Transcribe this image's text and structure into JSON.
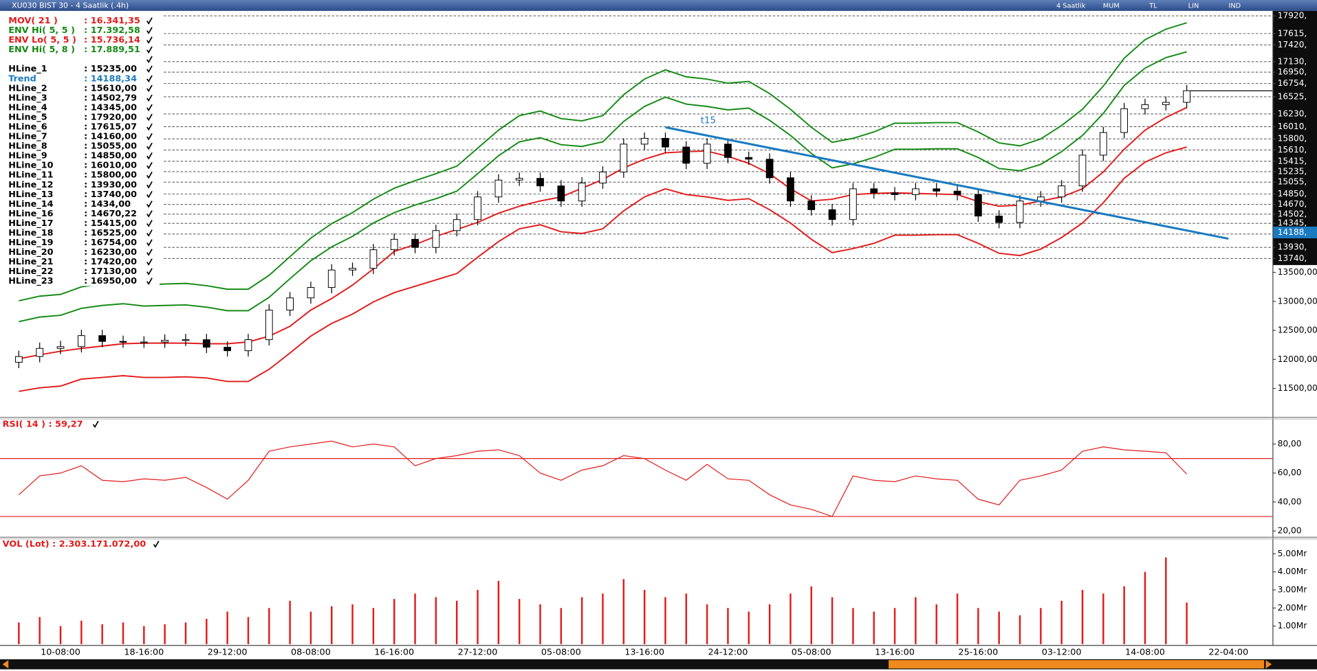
{
  "window_title": "XU030 BIST 30 - 4 Saatlik (.4h)",
  "toolbar": [
    "4 Saatlik",
    "MUM",
    "TL",
    "LIN",
    "IND"
  ],
  "chart_data": [
    {
      "type": "candlestick",
      "categories": [
        null,
        null,
        "10-08:00",
        null,
        null,
        null,
        "18-16:00",
        null,
        null,
        null,
        "29-12:00",
        null,
        null,
        null,
        "08-08:00",
        null,
        null,
        null,
        "16-16:00",
        null,
        null,
        null,
        "27-12:00",
        null,
        null,
        null,
        "05-08:00",
        null,
        null,
        null,
        "13-16:00",
        null,
        null,
        null,
        "24-12:00",
        null,
        null,
        null,
        "05-08:00",
        null,
        null,
        null,
        "13-16:00",
        null,
        null,
        null,
        "25-16:00",
        null,
        null,
        null,
        "03-12:00",
        null,
        null,
        null,
        "14-08:00",
        null,
        null,
        null,
        "22-04:00"
      ],
      "open": [
        11950,
        12050,
        12190,
        12220,
        12410,
        12310,
        12300,
        12300,
        12330,
        12340,
        12210,
        12150,
        12340,
        12850,
        13060,
        13240,
        13540,
        13570,
        13890,
        14070,
        13930,
        14220,
        14410,
        14800,
        15090,
        15120,
        14990,
        14730,
        15040,
        15230,
        15710,
        15810,
        15660,
        15380,
        15710,
        15480,
        15450,
        15130,
        14730,
        14580,
        14410,
        14940,
        14870,
        14840,
        14940,
        14900,
        14840,
        14470,
        14360,
        14730,
        14800,
        14990,
        15520,
        15910,
        16320,
        16390,
        16430,
        null,
        null
      ],
      "high": [
        12150,
        12290,
        12320,
        12510,
        12510,
        12410,
        12400,
        12430,
        12440,
        12440,
        12310,
        12440,
        12950,
        13160,
        13340,
        13640,
        13670,
        13990,
        14170,
        14170,
        14320,
        14510,
        14900,
        15190,
        15220,
        15220,
        15090,
        15140,
        15330,
        15810,
        15910,
        15910,
        15760,
        15810,
        15810,
        15580,
        15550,
        15230,
        14830,
        14680,
        15040,
        15040,
        14970,
        15040,
        15040,
        15000,
        14940,
        14570,
        14830,
        14900,
        15090,
        15620,
        16010,
        16420,
        16490,
        16530,
        16730,
        null,
        null
      ],
      "low": [
        11850,
        11950,
        12090,
        12120,
        12210,
        12200,
        12200,
        12200,
        12230,
        12110,
        12050,
        12050,
        12240,
        12750,
        12960,
        13140,
        13440,
        13470,
        13790,
        13830,
        13830,
        14120,
        14310,
        14700,
        14990,
        14890,
        14630,
        14630,
        14940,
        15130,
        15610,
        15560,
        15280,
        15280,
        15380,
        15350,
        15030,
        14630,
        14480,
        14310,
        14310,
        14770,
        14740,
        14740,
        14800,
        14740,
        14370,
        14260,
        14260,
        14630,
        14700,
        14890,
        15420,
        15810,
        16220,
        16290,
        16330,
        null,
        null
      ],
      "close": [
        12050,
        12190,
        12220,
        12410,
        12310,
        12300,
        12300,
        12330,
        12340,
        12210,
        12150,
        12340,
        12850,
        13060,
        13240,
        13540,
        13570,
        13890,
        14070,
        13930,
        14220,
        14410,
        14800,
        15090,
        15120,
        14990,
        14730,
        15040,
        15230,
        15710,
        15810,
        15660,
        15380,
        15710,
        15480,
        15450,
        15130,
        14730,
        14580,
        14410,
        14940,
        14870,
        14840,
        14940,
        14900,
        14840,
        14470,
        14360,
        14730,
        14800,
        14990,
        15520,
        15910,
        16320,
        16390,
        16430,
        16630,
        null,
        null
      ],
      "up_color": "#ffffff",
      "down_color": "#000000",
      "series": [
        {
          "name": "MOV( 21 )",
          "readout": ": 16.341,35",
          "color": "#e31a1a",
          "values": [
            12010,
            12080,
            12140,
            12190,
            12230,
            12270,
            12280,
            12280,
            12280,
            12270,
            12270,
            12300,
            12400,
            12570,
            12850,
            13050,
            13280,
            13560,
            13860,
            13980,
            14120,
            14240,
            14360,
            14520,
            14640,
            14730,
            14800,
            14950,
            15100,
            15300,
            15450,
            15560,
            15580,
            15590,
            15500,
            15380,
            15200,
            14940,
            14730,
            14760,
            14840,
            14860,
            14870,
            14860,
            14850,
            14840,
            14720,
            14640,
            14660,
            14730,
            14800,
            14940,
            15230,
            15620,
            15950,
            16170,
            16340,
            null,
            null
          ]
        },
        {
          "name": "ENV Hi( 5, 5 )",
          "readout": ": 17.392,58",
          "color": "#138a13",
          "values": [
            12650,
            12730,
            12760,
            12880,
            12930,
            12960,
            12920,
            12930,
            12940,
            12900,
            12840,
            12840,
            13070,
            13390,
            13700,
            13940,
            14120,
            14350,
            14530,
            14660,
            14770,
            14900,
            15200,
            15510,
            15750,
            15820,
            15700,
            15670,
            15750,
            16100,
            16360,
            16520,
            16400,
            16360,
            16300,
            16330,
            16120,
            15860,
            15550,
            15300,
            15370,
            15480,
            15620,
            15620,
            15630,
            15630,
            15480,
            15290,
            15250,
            15360,
            15580,
            15860,
            16240,
            16720,
            17020,
            17200,
            17300,
            null,
            null
          ]
        },
        {
          "name": "ENV Lo( 5, 5 )",
          "readout": ": 15.736,14",
          "color": "#e31a1a",
          "values": [
            11450,
            11510,
            11540,
            11660,
            11690,
            11720,
            11690,
            11690,
            11700,
            11680,
            11620,
            11620,
            11830,
            12110,
            12400,
            12620,
            12780,
            12990,
            13150,
            13260,
            13370,
            13480,
            13760,
            14030,
            14250,
            14320,
            14200,
            14170,
            14250,
            14560,
            14800,
            14940,
            14840,
            14800,
            14740,
            14770,
            14580,
            14350,
            14070,
            13840,
            13910,
            14000,
            14140,
            14140,
            14150,
            14150,
            14000,
            13830,
            13790,
            13900,
            14100,
            14350,
            14700,
            15120,
            15400,
            15560,
            15660,
            null,
            null
          ]
        },
        {
          "name": "ENV Hi( 5, 8 )",
          "readout": ": 17.889,51",
          "color": "#138a13",
          "values": [
            13010,
            13090,
            13120,
            13250,
            13300,
            13330,
            13280,
            13300,
            13310,
            13270,
            13210,
            13210,
            13450,
            13770,
            14090,
            14340,
            14530,
            14760,
            14950,
            15080,
            15200,
            15330,
            15640,
            15950,
            16200,
            16280,
            16150,
            16110,
            16200,
            16560,
            16830,
            16990,
            16870,
            16830,
            16760,
            16790,
            16580,
            16310,
            16000,
            15740,
            15810,
            15920,
            16070,
            16070,
            16080,
            16080,
            15920,
            15730,
            15680,
            15800,
            16030,
            16310,
            16710,
            17190,
            17510,
            17690,
            17800,
            null,
            null
          ]
        }
      ],
      "hlines": {
        "names": [
          "HLine_1",
          "HLine_2",
          "HLine_3",
          "HLine_4",
          "HLine_5",
          "HLine_6",
          "HLine_7",
          "HLine_8",
          "HLine_9",
          "HLine_10",
          "HLine_11",
          "HLine_12",
          "HLine_13",
          "HLine_14",
          "HLine_16",
          "HLine_17",
          "HLine_18",
          "HLine_19",
          "HLine_20",
          "HLine_21",
          "HLine_22",
          "HLine_23"
        ],
        "values": [
          15235,
          15610,
          14502.79,
          14345,
          17920,
          17615.07,
          14160,
          15055,
          14850,
          16010,
          15800,
          13930,
          13740,
          1434,
          14670.22,
          15415,
          16525,
          16754,
          16230,
          17420,
          17130,
          16950
        ],
        "value_labels": [
          ": 15235,00",
          ": 15610,00",
          ": 14502,79",
          ": 14345,00",
          ": 17920,00",
          ": 17615,07",
          ": 14160,00",
          ": 15055,00",
          ": 14850,00",
          ": 16010,00",
          ": 15800,00",
          ": 13930,00",
          ": 13740,00",
          ": 1434,00",
          ": 14670,22",
          ": 15415,00",
          ": 16525,00",
          ": 16754,00",
          ": 16230,00",
          ": 17420,00",
          ": 17130,00",
          ": 16950,00"
        ]
      },
      "trend": {
        "name": "Trend",
        "readout": ": 14188,34",
        "label": "t15",
        "color": "#1a7ac0",
        "x": [
          31,
          58
        ],
        "values": [
          16000,
          14080
        ],
        "axis_tick": {
          "value": 14188,
          "label": "14188,"
        }
      },
      "ylim": [
        11010,
        18020
      ],
      "yticks": [
        {
          "value": 17920,
          "label": "17920,"
        },
        {
          "value": 17615,
          "label": "17615,"
        },
        {
          "value": 17420,
          "label": "17420,"
        },
        {
          "value": 17130,
          "label": "17130,"
        },
        {
          "value": 16950,
          "label": "16950,"
        },
        {
          "value": 16754,
          "label": "16754,"
        },
        {
          "value": 16525,
          "label": "16525,"
        },
        {
          "value": 16230,
          "label": "16230,"
        },
        {
          "value": 16010,
          "label": "16010,"
        },
        {
          "value": 15800,
          "label": "15800,"
        },
        {
          "value": 15610,
          "label": "15610,"
        },
        {
          "value": 15415,
          "label": "15415,"
        },
        {
          "value": 15235,
          "label": "15235,"
        },
        {
          "value": 15055,
          "label": "15055,"
        },
        {
          "value": 14850,
          "label": "14850,"
        },
        {
          "value": 14670,
          "label": "14670,"
        },
        {
          "value": 14502,
          "label": "14502,"
        },
        {
          "value": 14345,
          "label": "14345,"
        },
        {
          "value": 13930,
          "label": "13930,"
        },
        {
          "value": 13740,
          "label": "13740,"
        },
        {
          "value": 13500,
          "label": "13500,00"
        },
        {
          "value": 13000,
          "label": "13000,00"
        },
        {
          "value": 12500,
          "label": "12500,00"
        },
        {
          "value": 12000,
          "label": "12000,00"
        },
        {
          "value": 11500,
          "label": "11500,00"
        }
      ],
      "grid": false
    },
    {
      "type": "line",
      "label": "RSI( 14 ) : 59,27",
      "color": "#e31a1a",
      "values": [
        45,
        58,
        60,
        65,
        55,
        54,
        56,
        55,
        57,
        50,
        42,
        55,
        75,
        78,
        80,
        82,
        78,
        80,
        78,
        65,
        70,
        72,
        75,
        76,
        72,
        60,
        55,
        62,
        65,
        72,
        70,
        62,
        55,
        66,
        56,
        55,
        45,
        38,
        35,
        30,
        58,
        55,
        54,
        58,
        56,
        55,
        42,
        38,
        55,
        58,
        62,
        75,
        78,
        76,
        75,
        74,
        59.27,
        null,
        null
      ],
      "levels": [
        70,
        30
      ],
      "ylim": [
        16,
        97
      ],
      "yticks": [
        {
          "value": 80,
          "label": "80,00"
        },
        {
          "value": 60,
          "label": "60,00"
        },
        {
          "value": 40,
          "label": "40,00"
        },
        {
          "value": 20,
          "label": "20,00"
        }
      ]
    },
    {
      "type": "bar",
      "label": "VOL (Lot) : 2.303.171.072,00",
      "color": "#e31a1a",
      "values": [
        1.2,
        1.5,
        1.0,
        1.3,
        1.1,
        1.2,
        1.0,
        1.1,
        1.2,
        1.4,
        1.8,
        1.5,
        2.0,
        2.4,
        1.8,
        2.1,
        2.2,
        2.0,
        2.5,
        2.8,
        2.6,
        2.4,
        3.0,
        3.5,
        2.5,
        2.2,
        2.0,
        2.6,
        2.8,
        3.6,
        3.0,
        2.6,
        2.8,
        2.2,
        2.0,
        1.8,
        2.2,
        2.8,
        3.2,
        2.6,
        2.0,
        1.8,
        2.0,
        2.6,
        2.2,
        2.8,
        2.0,
        1.8,
        1.6,
        2.0,
        2.4,
        3.0,
        2.8,
        3.2,
        4.0,
        4.8,
        2.303171072,
        null,
        null
      ],
      "ylim": [
        0,
        5.8
      ],
      "yticks": [
        {
          "value": 5,
          "label": "5.00Mr"
        },
        {
          "value": 4,
          "label": "4.00Mr"
        },
        {
          "value": 3,
          "label": "3.00Mr"
        },
        {
          "value": 2,
          "label": "2.00Mr"
        },
        {
          "value": 1,
          "label": "1.00Mr"
        }
      ]
    }
  ]
}
